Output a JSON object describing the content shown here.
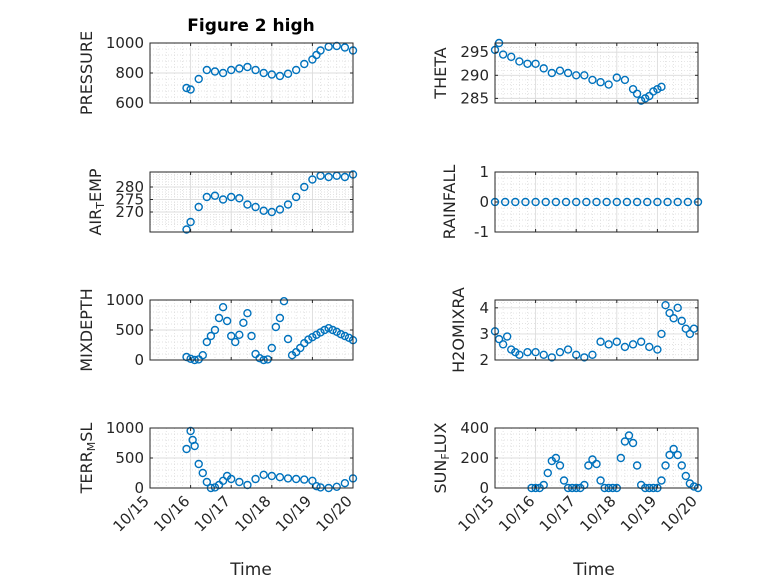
{
  "figure_title": "Figure 2 high",
  "xlabel": "Time",
  "x_tick_labels": [
    "10/15",
    "10/16",
    "10/17",
    "10/18",
    "10/19",
    "10/20"
  ],
  "marker_color": "#0072bd",
  "chart_data": [
    {
      "type": "scatter",
      "ylabel": "PRESSURE",
      "ylim": [
        600,
        1000
      ],
      "yticks": [
        600,
        800,
        1000
      ],
      "xlim": [
        0,
        5
      ],
      "x_unit": "days since 10/15",
      "grid": true,
      "x": [
        0.9,
        1.0,
        1.2,
        1.4,
        1.6,
        1.8,
        2.0,
        2.2,
        2.4,
        2.6,
        2.8,
        3.0,
        3.2,
        3.4,
        3.6,
        3.8,
        4.0,
        4.1,
        4.2,
        4.4,
        4.6,
        4.8,
        5.0
      ],
      "y": [
        700,
        690,
        760,
        820,
        810,
        800,
        820,
        830,
        840,
        820,
        800,
        790,
        780,
        795,
        820,
        860,
        890,
        920,
        950,
        975,
        980,
        970,
        950
      ]
    },
    {
      "type": "scatter",
      "ylabel": "THETA",
      "ylim": [
        284,
        297
      ],
      "yticks": [
        285,
        290,
        295
      ],
      "xlim": [
        0,
        5
      ],
      "grid": true,
      "x": [
        0.0,
        0.1,
        0.2,
        0.4,
        0.6,
        0.8,
        1.0,
        1.2,
        1.4,
        1.6,
        1.8,
        2.0,
        2.2,
        2.4,
        2.6,
        2.8,
        3.0,
        3.2,
        3.4,
        3.5,
        3.6,
        3.7,
        3.8,
        3.9,
        4.0,
        4.1
      ],
      "y": [
        295.5,
        297,
        294.5,
        294,
        293,
        292.5,
        292.5,
        291.5,
        290.5,
        291,
        290.5,
        290,
        290,
        289,
        288.5,
        288,
        289.5,
        289,
        287,
        286,
        284.5,
        285,
        285.5,
        286.5,
        287,
        287.5
      ]
    },
    {
      "type": "scatter",
      "ylabel": "AIR_TEMP",
      "ylim": [
        262,
        286
      ],
      "yticks": [
        270,
        275,
        280
      ],
      "xlim": [
        0,
        5
      ],
      "grid": true,
      "x": [
        0.9,
        1.0,
        1.2,
        1.4,
        1.6,
        1.8,
        2.0,
        2.2,
        2.4,
        2.6,
        2.8,
        3.0,
        3.2,
        3.4,
        3.6,
        3.8,
        4.0,
        4.2,
        4.4,
        4.6,
        4.8,
        5.0
      ],
      "y": [
        263,
        266,
        272,
        276,
        276.5,
        275,
        276,
        275.5,
        273,
        272,
        270.5,
        270,
        271,
        273,
        276,
        280,
        283,
        284.5,
        284,
        284.5,
        284,
        285
      ]
    },
    {
      "type": "scatter",
      "ylabel": "RAINFALL",
      "ylim": [
        -1,
        1
      ],
      "yticks": [
        -1,
        0,
        1
      ],
      "xlim": [
        0,
        5
      ],
      "grid": true,
      "x": [
        0.0,
        0.25,
        0.5,
        0.75,
        1.0,
        1.25,
        1.5,
        1.75,
        2.0,
        2.25,
        2.5,
        2.75,
        3.0,
        3.25,
        3.5,
        3.75,
        4.0,
        4.25,
        4.5,
        4.75,
        5.0
      ],
      "y": [
        0,
        0,
        0,
        0,
        0,
        0,
        0,
        0,
        0,
        0,
        0,
        0,
        0,
        0,
        0,
        0,
        0,
        0,
        0,
        0,
        0
      ]
    },
    {
      "type": "scatter",
      "ylabel": "MIXDEPTH",
      "ylim": [
        0,
        1000
      ],
      "yticks": [
        0,
        500,
        1000
      ],
      "xlim": [
        0,
        5
      ],
      "grid": true,
      "x": [
        0.9,
        1.0,
        1.1,
        1.2,
        1.3,
        1.4,
        1.5,
        1.6,
        1.7,
        1.8,
        1.9,
        2.0,
        2.1,
        2.2,
        2.3,
        2.4,
        2.5,
        2.6,
        2.7,
        2.8,
        2.9,
        3.0,
        3.1,
        3.2,
        3.3,
        3.4,
        3.5,
        3.6,
        3.7,
        3.8,
        3.9,
        4.0,
        4.1,
        4.2,
        4.3,
        4.4,
        4.5,
        4.6,
        4.7,
        4.8,
        4.9,
        5.0
      ],
      "y": [
        50,
        20,
        0,
        10,
        80,
        300,
        400,
        500,
        700,
        880,
        650,
        400,
        300,
        420,
        620,
        780,
        400,
        100,
        30,
        0,
        10,
        200,
        550,
        700,
        980,
        350,
        80,
        130,
        200,
        280,
        340,
        380,
        420,
        460,
        500,
        530,
        500,
        470,
        430,
        400,
        370,
        330
      ]
    },
    {
      "type": "scatter",
      "ylabel": "H2OMIXRA",
      "ylim": [
        2,
        4.3
      ],
      "yticks": [
        2,
        3,
        4
      ],
      "xlim": [
        0,
        5
      ],
      "grid": true,
      "x": [
        0.0,
        0.1,
        0.2,
        0.3,
        0.4,
        0.5,
        0.6,
        0.8,
        1.0,
        1.2,
        1.4,
        1.6,
        1.8,
        2.0,
        2.2,
        2.4,
        2.6,
        2.8,
        3.0,
        3.2,
        3.4,
        3.6,
        3.8,
        4.0,
        4.1,
        4.2,
        4.3,
        4.4,
        4.5,
        4.6,
        4.7,
        4.8,
        4.9
      ],
      "y": [
        3.1,
        2.8,
        2.6,
        2.9,
        2.4,
        2.3,
        2.2,
        2.3,
        2.3,
        2.2,
        2.1,
        2.3,
        2.4,
        2.2,
        2.1,
        2.2,
        2.7,
        2.6,
        2.7,
        2.5,
        2.6,
        2.7,
        2.5,
        2.4,
        3.0,
        4.1,
        3.8,
        3.6,
        4.0,
        3.5,
        3.2,
        3.0,
        3.2
      ]
    },
    {
      "type": "scatter",
      "ylabel": "TERR_MSL",
      "ylim": [
        0,
        1000
      ],
      "yticks": [
        0,
        500,
        1000
      ],
      "xlim": [
        0,
        5
      ],
      "grid": true,
      "x": [
        0.9,
        1.0,
        1.05,
        1.1,
        1.2,
        1.3,
        1.4,
        1.5,
        1.6,
        1.7,
        1.8,
        1.9,
        2.0,
        2.2,
        2.4,
        2.6,
        2.8,
        3.0,
        3.2,
        3.4,
        3.6,
        3.8,
        4.0,
        4.1,
        4.2,
        4.4,
        4.6,
        4.8,
        5.0
      ],
      "y": [
        650,
        950,
        800,
        700,
        400,
        250,
        100,
        0,
        10,
        50,
        120,
        200,
        150,
        100,
        50,
        150,
        220,
        200,
        180,
        160,
        150,
        140,
        120,
        30,
        10,
        0,
        20,
        80,
        160
      ]
    },
    {
      "type": "scatter",
      "ylabel": "SUN_FLUX",
      "ylim": [
        0,
        400
      ],
      "yticks": [
        0,
        200,
        400
      ],
      "xlim": [
        0,
        5
      ],
      "grid": true,
      "x": [
        0.9,
        1.0,
        1.1,
        1.2,
        1.3,
        1.4,
        1.5,
        1.6,
        1.7,
        1.8,
        1.9,
        2.0,
        2.1,
        2.2,
        2.3,
        2.4,
        2.5,
        2.6,
        2.7,
        2.8,
        2.9,
        3.0,
        3.1,
        3.2,
        3.3,
        3.4,
        3.5,
        3.6,
        3.7,
        3.8,
        3.9,
        4.0,
        4.1,
        4.2,
        4.3,
        4.4,
        4.5,
        4.6,
        4.7,
        4.8,
        4.9,
        5.0
      ],
      "y": [
        0,
        0,
        0,
        20,
        100,
        180,
        200,
        150,
        50,
        0,
        0,
        0,
        0,
        20,
        150,
        190,
        160,
        50,
        0,
        0,
        0,
        0,
        200,
        310,
        350,
        300,
        150,
        20,
        0,
        0,
        0,
        0,
        50,
        150,
        220,
        260,
        220,
        150,
        80,
        30,
        10,
        0
      ]
    }
  ]
}
